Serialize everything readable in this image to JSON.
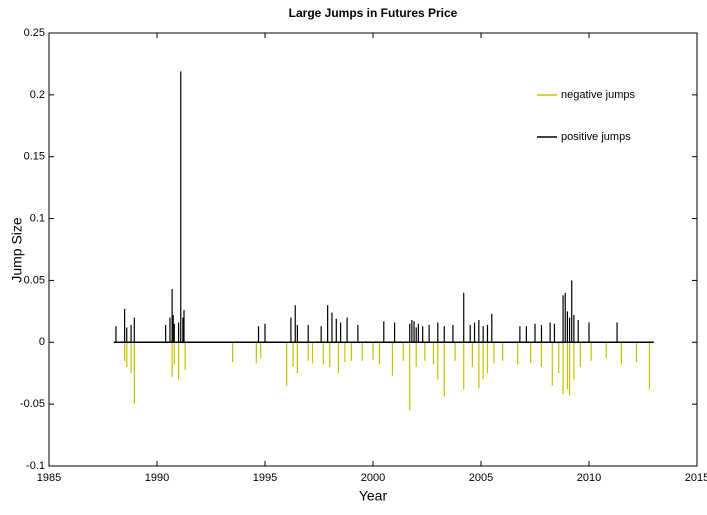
{
  "chart_data": {
    "type": "spike",
    "title": "Large Jumps in Futures Price",
    "x_label": "Year",
    "y_label": "Jump Size",
    "xlim": [
      1985,
      2015
    ],
    "xticks": [
      1985,
      1990,
      1995,
      2000,
      2005,
      2010,
      2015
    ],
    "ylim": [
      -0.1,
      0.25
    ],
    "yticks": [
      -0.1,
      -0.05,
      0,
      0.05,
      0.1,
      0.15,
      0.2,
      0.25
    ],
    "grid": false,
    "legend": "northeast",
    "series": [
      {
        "name": "negative jumps",
        "color": "#c8c000",
        "x": [
          1988.5,
          1988.6,
          1988.8,
          1988.95,
          1990.7,
          1990.8,
          1991.0,
          1991.3,
          1993.5,
          1994.6,
          1994.8,
          1996.0,
          1996.3,
          1996.5,
          1997.0,
          1997.2,
          1997.7,
          1998.0,
          1998.4,
          1998.7,
          1999.0,
          1999.5,
          2000.0,
          2000.3,
          2000.9,
          2001.4,
          2001.7,
          2002.0,
          2002.4,
          2002.8,
          2003.0,
          2003.3,
          2003.8,
          2004.2,
          2004.6,
          2004.9,
          2005.1,
          2005.3,
          2005.6,
          2006.0,
          2006.7,
          2007.3,
          2007.8,
          2008.3,
          2008.6,
          2008.8,
          2009.0,
          2009.1,
          2009.3,
          2009.6,
          2010.1,
          2010.8,
          2011.5,
          2012.2,
          2012.8
        ],
        "values": [
          -0.015,
          -0.02,
          -0.025,
          -0.05,
          -0.028,
          -0.018,
          -0.03,
          -0.022,
          -0.016,
          -0.017,
          -0.013,
          -0.035,
          -0.02,
          -0.025,
          -0.015,
          -0.017,
          -0.018,
          -0.02,
          -0.025,
          -0.016,
          -0.015,
          -0.015,
          -0.014,
          -0.018,
          -0.027,
          -0.015,
          -0.055,
          -0.02,
          -0.015,
          -0.018,
          -0.03,
          -0.044,
          -0.015,
          -0.038,
          -0.02,
          -0.037,
          -0.03,
          -0.025,
          -0.017,
          -0.015,
          -0.018,
          -0.017,
          -0.02,
          -0.035,
          -0.025,
          -0.042,
          -0.038,
          -0.043,
          -0.03,
          -0.02,
          -0.015,
          -0.013,
          -0.018,
          -0.016,
          -0.038
        ]
      },
      {
        "name": "positive jumps",
        "color": "#000000",
        "x": [
          1988.1,
          1988.5,
          1988.6,
          1988.8,
          1988.95,
          1990.4,
          1990.6,
          1990.7,
          1990.75,
          1990.8,
          1991.0,
          1991.1,
          1991.2,
          1991.25,
          1994.7,
          1995.0,
          1996.2,
          1996.4,
          1996.5,
          1997.0,
          1997.6,
          1997.9,
          1998.1,
          1998.3,
          1998.5,
          1998.8,
          1999.3,
          2000.5,
          2001.0,
          2001.7,
          2001.8,
          2001.9,
          2002.0,
          2002.1,
          2002.3,
          2002.6,
          2003.0,
          2003.3,
          2003.7,
          2004.2,
          2004.5,
          2004.7,
          2004.9,
          2005.1,
          2005.3,
          2005.5,
          2006.8,
          2007.1,
          2007.5,
          2007.8,
          2008.2,
          2008.4,
          2008.8,
          2008.9,
          2009.0,
          2009.1,
          2009.2,
          2009.3,
          2009.5,
          2010.0,
          2011.3
        ],
        "values": [
          0.013,
          0.027,
          0.012,
          0.014,
          0.02,
          0.014,
          0.02,
          0.043,
          0.022,
          0.015,
          0.016,
          0.219,
          0.02,
          0.026,
          0.013,
          0.015,
          0.02,
          0.03,
          0.014,
          0.014,
          0.013,
          0.03,
          0.024,
          0.019,
          0.016,
          0.02,
          0.014,
          0.017,
          0.016,
          0.015,
          0.018,
          0.017,
          0.012,
          0.015,
          0.013,
          0.014,
          0.016,
          0.013,
          0.014,
          0.04,
          0.014,
          0.016,
          0.018,
          0.013,
          0.014,
          0.023,
          0.013,
          0.013,
          0.015,
          0.014,
          0.016,
          0.015,
          0.038,
          0.04,
          0.025,
          0.02,
          0.05,
          0.022,
          0.018,
          0.016,
          0.016
        ]
      }
    ]
  }
}
